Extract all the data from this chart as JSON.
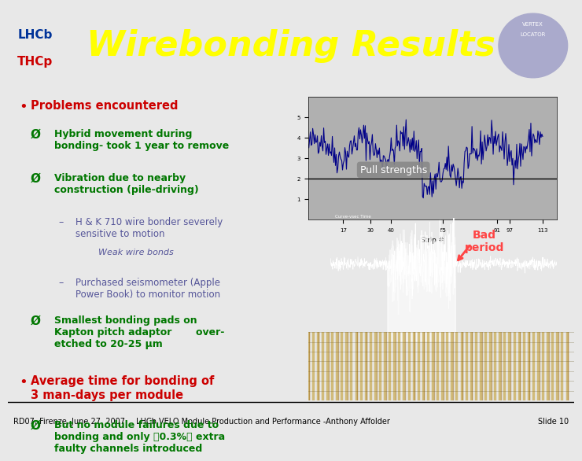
{
  "title": "Wirebonding Results",
  "title_color": "#FFFF00",
  "header_bg": "#1a3a8a",
  "slide_bg": "#e8e8e8",
  "footer_text_left": "RD07, Firenze, June 27, 2007",
  "footer_text_center": "LHCb VELO Module Production and Performance -Anthony Affolder",
  "footer_text_right": "Slide 10",
  "footer_bg": "#ffffff",
  "bullet_main_color": "#cc0000",
  "bullet_sub_color": "#007700",
  "bullet_arrow_color": "#006600",
  "bullet_gray_color": "#555555",
  "bullet_red_color": "#cc0000",
  "content": [
    {
      "type": "main_bullet",
      "text": "Problems encountered",
      "color": "#cc0000"
    },
    {
      "type": "sub_arrow",
      "text": "Hybrid movement during\nbonding- took 1 year to remove",
      "color": "#007700"
    },
    {
      "type": "sub_arrow",
      "text": "Vibration due to nearby\nconstruction (pile-driving)",
      "color": "#007700"
    },
    {
      "type": "dash1",
      "text": "H & K 710 wire bonder severely\nsensitive to motion",
      "color": "#555599"
    },
    {
      "type": "dash2",
      "text": "Weak wire bonds",
      "color": "#555599"
    },
    {
      "type": "dash1",
      "text": "Purchased seismometer (Apple\nPower Book) to monitor motion",
      "color": "#555599"
    },
    {
      "type": "sub_arrow",
      "text": "Smallest bonding pads on\nKapton pitch adaptor       over-\netched to 20-25 μm",
      "color": "#007700"
    },
    {
      "type": "main_bullet2",
      "text": "Average time for bonding of\n3 man-days per module",
      "color": "#cc0000"
    },
    {
      "type": "sub_arrow2",
      "text": "But no module failures due to\nbonding and only 0.3% extra\nfaulty channels introduced",
      "color": "#007700"
    }
  ]
}
